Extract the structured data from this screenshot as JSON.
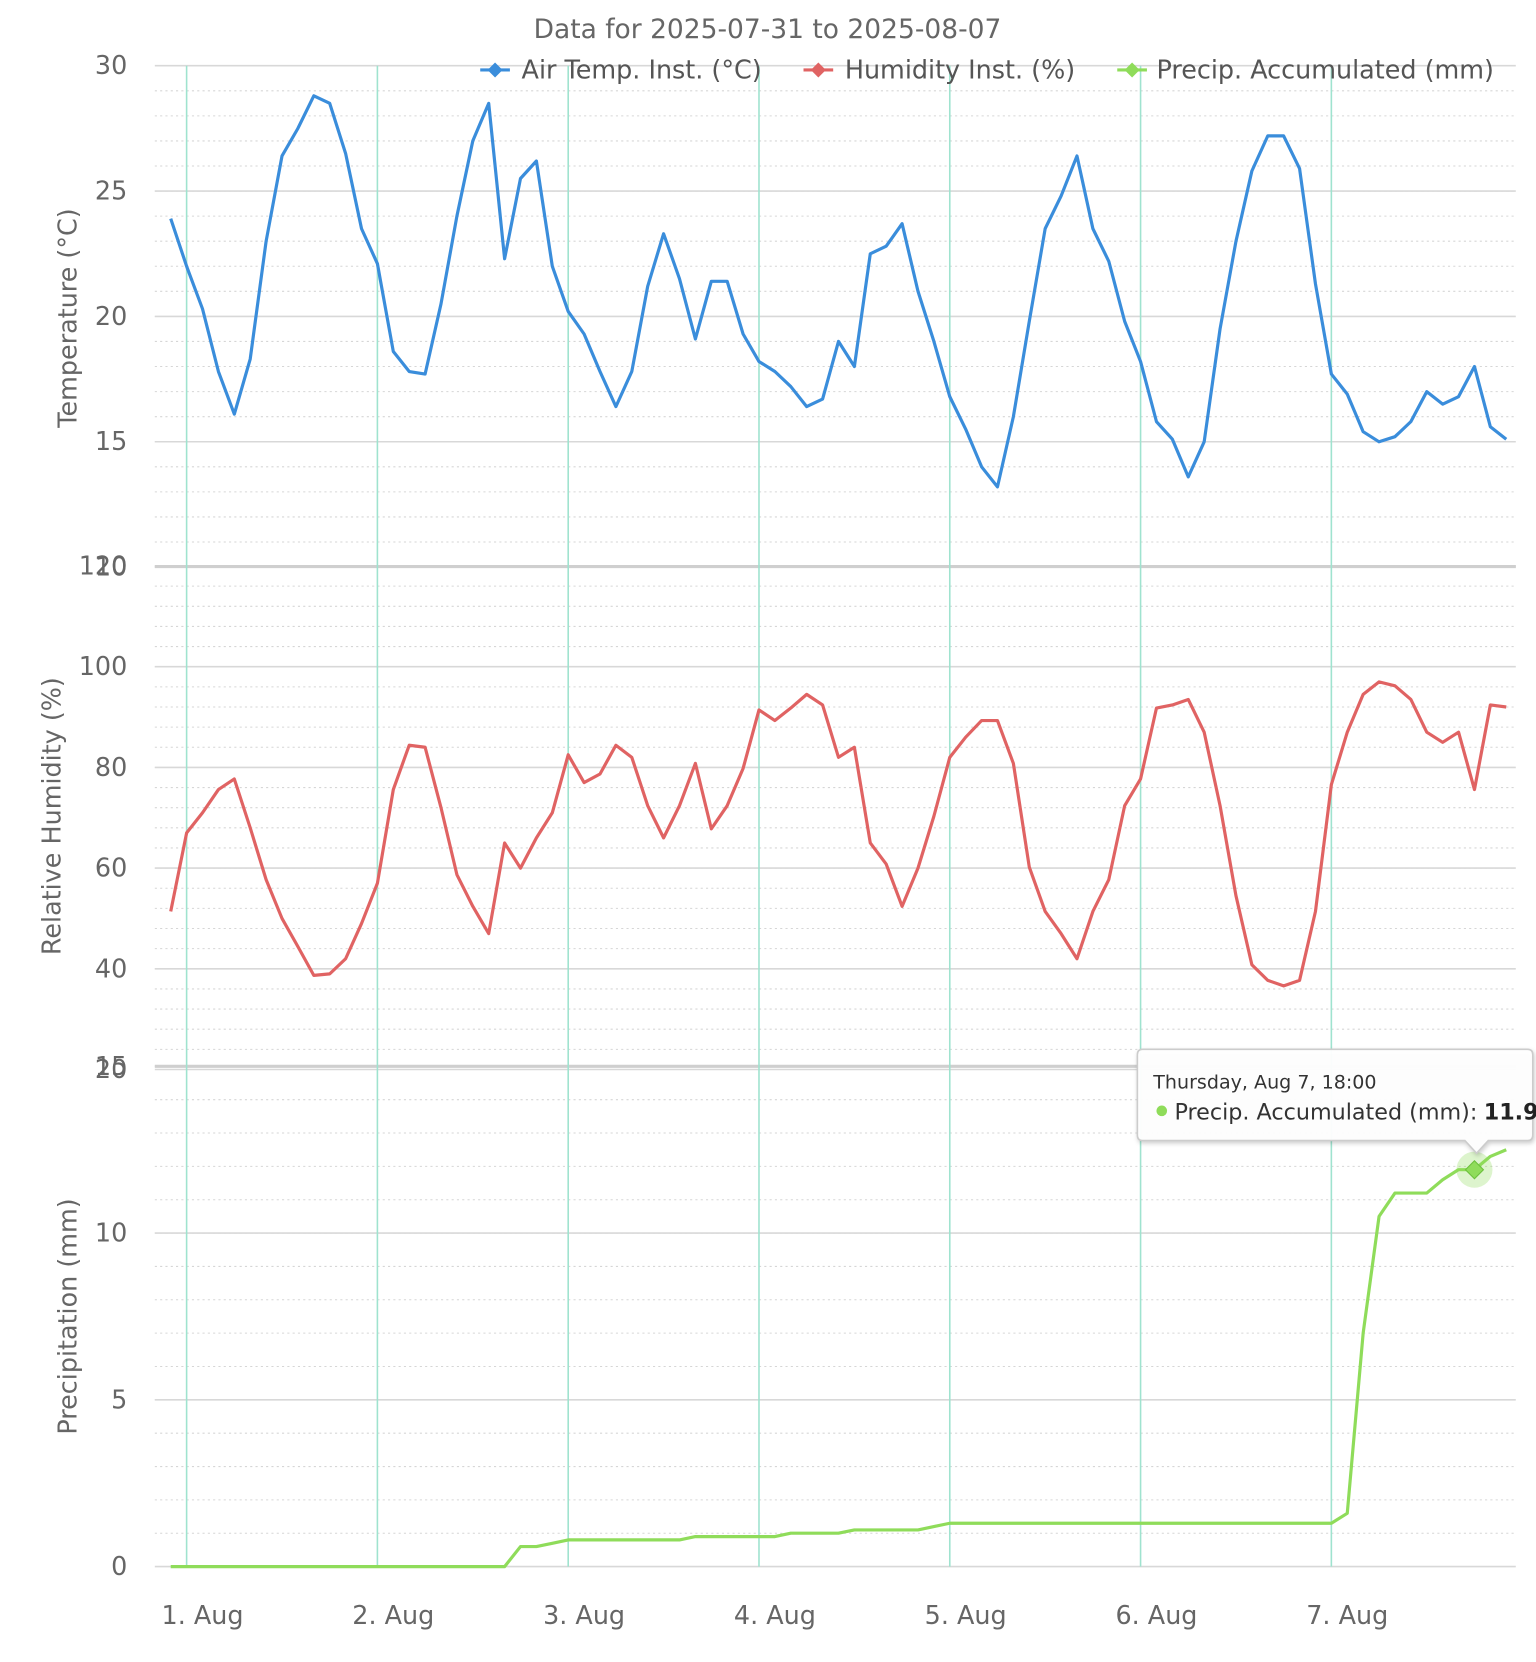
{
  "chart_data": {
    "type": "line",
    "title": "Data for 2025-07-31 to 2025-08-07",
    "ylabel": "Temperature (°C)",
    "y2label": "Relative Humidity (%)",
    "y3label": "Precipitation (mm)",
    "ylim": [
      10,
      30
    ],
    "yticks": [
      10,
      15,
      20,
      25,
      30
    ],
    "y_minor_interval": 1,
    "y2lim": [
      20,
      120
    ],
    "y2ticks": [
      20,
      40,
      60,
      80,
      100,
      120
    ],
    "y2_minor_interval": 4,
    "y3lim": [
      0,
      15
    ],
    "y3ticks": [
      0,
      5,
      10,
      15
    ],
    "y3_minor_interval": 1,
    "grid": true,
    "legend": "top-right",
    "xticks": [
      {
        "value": "2025-08-01T00:00",
        "label": "1. Aug"
      },
      {
        "value": "2025-08-02T00:00",
        "label": "2. Aug"
      },
      {
        "value": "2025-08-03T00:00",
        "label": "3. Aug"
      },
      {
        "value": "2025-08-04T00:00",
        "label": "4. Aug"
      },
      {
        "value": "2025-08-05T00:00",
        "label": "5. Aug"
      },
      {
        "value": "2025-08-06T00:00",
        "label": "6. Aug"
      },
      {
        "value": "2025-08-07T00:00",
        "label": "7. Aug"
      }
    ],
    "x": [
      "2025-07-31T22:00",
      "2025-08-01T00:00",
      "2025-08-01T02:00",
      "2025-08-01T04:00",
      "2025-08-01T06:00",
      "2025-08-01T08:00",
      "2025-08-01T10:00",
      "2025-08-01T12:00",
      "2025-08-01T14:00",
      "2025-08-01T16:00",
      "2025-08-01T18:00",
      "2025-08-01T20:00",
      "2025-08-01T22:00",
      "2025-08-02T00:00",
      "2025-08-02T02:00",
      "2025-08-02T04:00",
      "2025-08-02T06:00",
      "2025-08-02T08:00",
      "2025-08-02T10:00",
      "2025-08-02T12:00",
      "2025-08-02T14:00",
      "2025-08-02T16:00",
      "2025-08-02T18:00",
      "2025-08-02T20:00",
      "2025-08-02T22:00",
      "2025-08-03T00:00",
      "2025-08-03T02:00",
      "2025-08-03T04:00",
      "2025-08-03T06:00",
      "2025-08-03T08:00",
      "2025-08-03T10:00",
      "2025-08-03T12:00",
      "2025-08-03T14:00",
      "2025-08-03T16:00",
      "2025-08-03T18:00",
      "2025-08-03T20:00",
      "2025-08-03T22:00",
      "2025-08-04T00:00",
      "2025-08-04T02:00",
      "2025-08-04T04:00",
      "2025-08-04T06:00",
      "2025-08-04T08:00",
      "2025-08-04T10:00",
      "2025-08-04T12:00",
      "2025-08-04T14:00",
      "2025-08-04T16:00",
      "2025-08-04T18:00",
      "2025-08-04T20:00",
      "2025-08-04T22:00",
      "2025-08-05T00:00",
      "2025-08-05T02:00",
      "2025-08-05T04:00",
      "2025-08-05T06:00",
      "2025-08-05T08:00",
      "2025-08-05T10:00",
      "2025-08-05T12:00",
      "2025-08-05T14:00",
      "2025-08-05T16:00",
      "2025-08-05T18:00",
      "2025-08-05T20:00",
      "2025-08-05T22:00",
      "2025-08-06T00:00",
      "2025-08-06T02:00",
      "2025-08-06T04:00",
      "2025-08-06T06:00",
      "2025-08-06T08:00",
      "2025-08-06T10:00",
      "2025-08-06T12:00",
      "2025-08-06T14:00",
      "2025-08-06T16:00",
      "2025-08-06T18:00",
      "2025-08-06T20:00",
      "2025-08-06T22:00",
      "2025-08-07T00:00",
      "2025-08-07T02:00",
      "2025-08-07T04:00",
      "2025-08-07T06:00",
      "2025-08-07T08:00",
      "2025-08-07T10:00",
      "2025-08-07T12:00",
      "2025-08-07T14:00",
      "2025-08-07T16:00",
      "2025-08-07T18:00",
      "2025-08-07T20:00",
      "2025-08-07T22:00"
    ],
    "series": [
      {
        "name": "Air Temp. Inst. (°C)",
        "color": "#3a8ddb",
        "axis": "y",
        "values": [
          23.9,
          22,
          20.3,
          17.8,
          16.1,
          18.3,
          23,
          26.4,
          27.5,
          28.8,
          28.5,
          26.5,
          23.5,
          22.1,
          18.6,
          17.8,
          17.7,
          20.5,
          24,
          27,
          28.5,
          22.3,
          25.5,
          26.2,
          22,
          20.2,
          19.3,
          17.8,
          16.4,
          17.8,
          21.2,
          23.3,
          21.5,
          19.1,
          21.4,
          21.4,
          19.3,
          18.2,
          17.8,
          17.2,
          16.4,
          16.7,
          19,
          18,
          22.5,
          22.8,
          23.7,
          21,
          19,
          16.8,
          15.5,
          14,
          13.2,
          16,
          19.8,
          23.5,
          24.8,
          26.4,
          23.5,
          22.2,
          19.8,
          18.2,
          15.8,
          15.1,
          13.6,
          15,
          19.5,
          23,
          25.8,
          27.2,
          27.2,
          25.9,
          21.3,
          17.7,
          16.9,
          15.4,
          15,
          15.2,
          15.8,
          17,
          16.5,
          16.8,
          18,
          15.6,
          15.1
        ]
      },
      {
        "name": "Humidity Inst. (%)",
        "color": "#e06363",
        "axis": "y2",
        "values": [
          51.4,
          67,
          71,
          75.6,
          77.7,
          68,
          57.7,
          50,
          44.4,
          38.7,
          39,
          42,
          49,
          57,
          75.6,
          84.4,
          84,
          72,
          58.7,
          52.4,
          47,
          65,
          60,
          66,
          71,
          82.5,
          77,
          78.7,
          84.4,
          82,
          72.4,
          66,
          72.4,
          80.8,
          67.8,
          72.4,
          79.8,
          91.4,
          89.3,
          91.8,
          94.5,
          92.4,
          82,
          84,
          65,
          60.8,
          52.4,
          60,
          70.3,
          82,
          86,
          89.3,
          89.3,
          80.8,
          60.2,
          51.4,
          47,
          42,
          51.4,
          57.7,
          72.4,
          77.7,
          91.8,
          92.4,
          93.5,
          87,
          72.4,
          54.5,
          40.8,
          37.7,
          36.6,
          37.7,
          51.4,
          76.6,
          87,
          94.5,
          97,
          96.2,
          93.5,
          87,
          85,
          87,
          75.6,
          92.4,
          92
        ]
      },
      {
        "name": "Precip. Accumulated (mm)",
        "color": "#8fdc5a",
        "axis": "y3",
        "values": [
          0,
          0,
          0,
          0,
          0,
          0,
          0,
          0,
          0,
          0,
          0,
          0,
          0,
          0,
          0,
          0,
          0,
          0,
          0,
          0,
          0,
          0,
          0.6,
          0.6,
          0.7,
          0.8,
          0.8,
          0.8,
          0.8,
          0.8,
          0.8,
          0.8,
          0.8,
          0.9,
          0.9,
          0.9,
          0.9,
          0.9,
          0.9,
          1,
          1,
          1,
          1,
          1.1,
          1.1,
          1.1,
          1.1,
          1.1,
          1.2,
          1.3,
          1.3,
          1.3,
          1.3,
          1.3,
          1.3,
          1.3,
          1.3,
          1.3,
          1.3,
          1.3,
          1.3,
          1.3,
          1.3,
          1.3,
          1.3,
          1.3,
          1.3,
          1.3,
          1.3,
          1.3,
          1.3,
          1.3,
          1.3,
          1.3,
          1.6,
          7,
          10.5,
          11.2,
          11.2,
          11.2,
          11.6,
          11.9,
          11.9,
          12.3,
          12.5
        ]
      }
    ],
    "tooltip": {
      "title": "Thursday, Aug 7, 18:00",
      "label": "Precip. Accumulated (mm):"
    }
  }
}
